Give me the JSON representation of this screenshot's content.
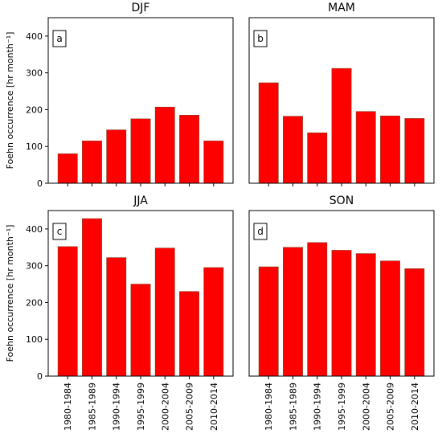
{
  "chart_data": [
    {
      "type": "bar",
      "title": "DJF",
      "panel_label": "a",
      "categories": [
        "1980-1984",
        "1985-1989",
        "1990-1994",
        "1995-1999",
        "2000-2004",
        "2005-2009",
        "2010-2014"
      ],
      "values": [
        80,
        115,
        145,
        175,
        207,
        185,
        115
      ],
      "ylabel": "Foehn occurrence [hr month⁻¹]",
      "ylim": [
        0,
        450
      ],
      "yticks": [
        0,
        100,
        200,
        300,
        400
      ],
      "bar_color": "#ff0000"
    },
    {
      "type": "bar",
      "title": "MAM",
      "panel_label": "b",
      "categories": [
        "1980-1984",
        "1985-1989",
        "1990-1994",
        "1995-1999",
        "2000-2004",
        "2005-2009",
        "2010-2014"
      ],
      "values": [
        273,
        182,
        137,
        312,
        195,
        183,
        176
      ],
      "ylabel": "",
      "ylim": [
        0,
        450
      ],
      "yticks": [],
      "bar_color": "#ff0000"
    },
    {
      "type": "bar",
      "title": "JJA",
      "panel_label": "c",
      "categories": [
        "1980-1984",
        "1985-1989",
        "1990-1994",
        "1995-1999",
        "2000-2004",
        "2005-2009",
        "2010-2014"
      ],
      "values": [
        352,
        428,
        322,
        250,
        348,
        230,
        295
      ],
      "ylabel": "Foehn occurrence [hr month⁻¹]",
      "ylim": [
        0,
        450
      ],
      "yticks": [
        0,
        100,
        200,
        300,
        400
      ],
      "bar_color": "#ff0000"
    },
    {
      "type": "bar",
      "title": "SON",
      "panel_label": "d",
      "categories": [
        "1980-1984",
        "1985-1989",
        "1990-1994",
        "1995-1999",
        "2000-2004",
        "2005-2009",
        "2010-2014"
      ],
      "values": [
        297,
        350,
        363,
        342,
        333,
        313,
        292
      ],
      "ylabel": "",
      "ylim": [
        0,
        450
      ],
      "yticks": [],
      "bar_color": "#ff0000"
    }
  ],
  "colors": {
    "bar": "#ff0000",
    "bar_edge": "#8b3a1a",
    "axes": "#000000"
  }
}
